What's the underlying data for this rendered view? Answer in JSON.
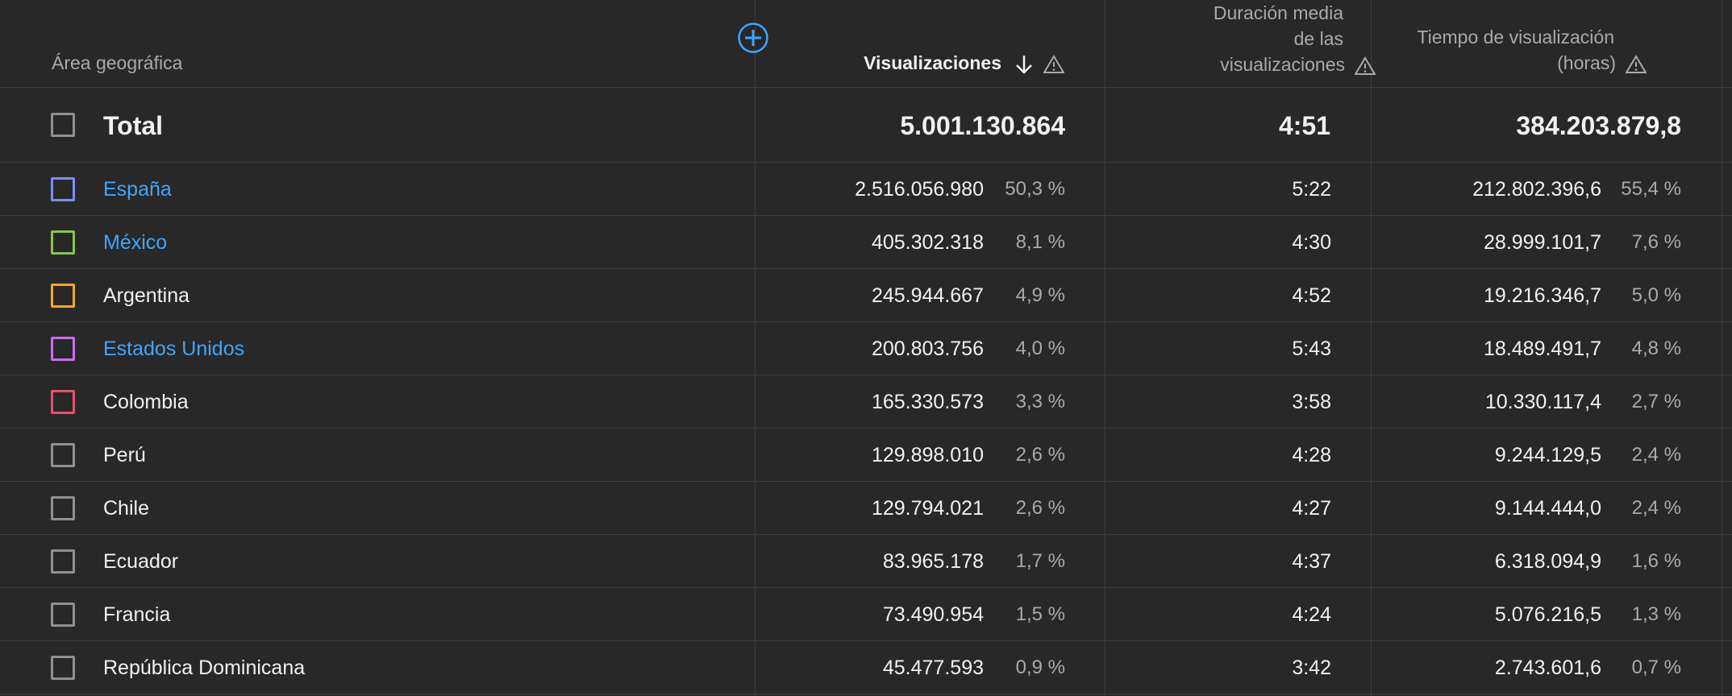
{
  "header": {
    "region_label": "Área geográfica",
    "views_label": "Visualizaciones",
    "avg_duration_line1": "Duración media",
    "avg_duration_line2": "de las",
    "avg_duration_line3": "visualizaciones",
    "watch_time_line1": "Tiempo de visualización",
    "watch_time_line2": "(horas)"
  },
  "icons": {
    "add_column": "plus-circle-icon",
    "sort": "arrow-down-icon",
    "warning": "warning-triangle-icon"
  },
  "total": {
    "label": "Total",
    "views": "5.001.130.864",
    "avg_duration": "4:51",
    "watch_time": "384.203.879,8"
  },
  "rows": [
    {
      "country": "España",
      "link": true,
      "color": "#7f8cff",
      "views": "2.516.056.980",
      "views_pct": "50,3 %",
      "avg_duration": "5:22",
      "watch_time": "212.802.396,6",
      "watch_pct": "55,4 %"
    },
    {
      "country": "México",
      "link": true,
      "color": "#8bc34a",
      "views": "405.302.318",
      "views_pct": "8,1 %",
      "avg_duration": "4:30",
      "watch_time": "28.999.101,7",
      "watch_pct": "7,6 %"
    },
    {
      "country": "Argentina",
      "link": false,
      "color": "#f5a623",
      "views": "245.944.667",
      "views_pct": "4,9 %",
      "avg_duration": "4:52",
      "watch_time": "19.216.346,7",
      "watch_pct": "5,0 %"
    },
    {
      "country": "Estados Unidos",
      "link": true,
      "color": "#c86cf5",
      "views": "200.803.756",
      "views_pct": "4,0 %",
      "avg_duration": "5:43",
      "watch_time": "18.489.491,7",
      "watch_pct": "4,8 %"
    },
    {
      "country": "Colombia",
      "link": false,
      "color": "#e84f6a",
      "views": "165.330.573",
      "views_pct": "3,3 %",
      "avg_duration": "3:58",
      "watch_time": "10.330.117,4",
      "watch_pct": "2,7 %"
    },
    {
      "country": "Perú",
      "link": false,
      "color": "#909090",
      "views": "129.898.010",
      "views_pct": "2,6 %",
      "avg_duration": "4:28",
      "watch_time": "9.244.129,5",
      "watch_pct": "2,4 %"
    },
    {
      "country": "Chile",
      "link": false,
      "color": "#909090",
      "views": "129.794.021",
      "views_pct": "2,6 %",
      "avg_duration": "4:27",
      "watch_time": "9.144.444,0",
      "watch_pct": "2,4 %"
    },
    {
      "country": "Ecuador",
      "link": false,
      "color": "#909090",
      "views": "83.965.178",
      "views_pct": "1,7 %",
      "avg_duration": "4:37",
      "watch_time": "6.318.094,9",
      "watch_pct": "1,6 %"
    },
    {
      "country": "Francia",
      "link": false,
      "color": "#909090",
      "views": "73.490.954",
      "views_pct": "1,5 %",
      "avg_duration": "4:24",
      "watch_time": "5.076.216,5",
      "watch_pct": "1,3 %"
    },
    {
      "country": "República Dominicana",
      "link": false,
      "color": "#909090",
      "views": "45.477.593",
      "views_pct": "0,9 %",
      "avg_duration": "3:42",
      "watch_time": "2.743.601,6",
      "watch_pct": "0,7 %"
    }
  ]
}
